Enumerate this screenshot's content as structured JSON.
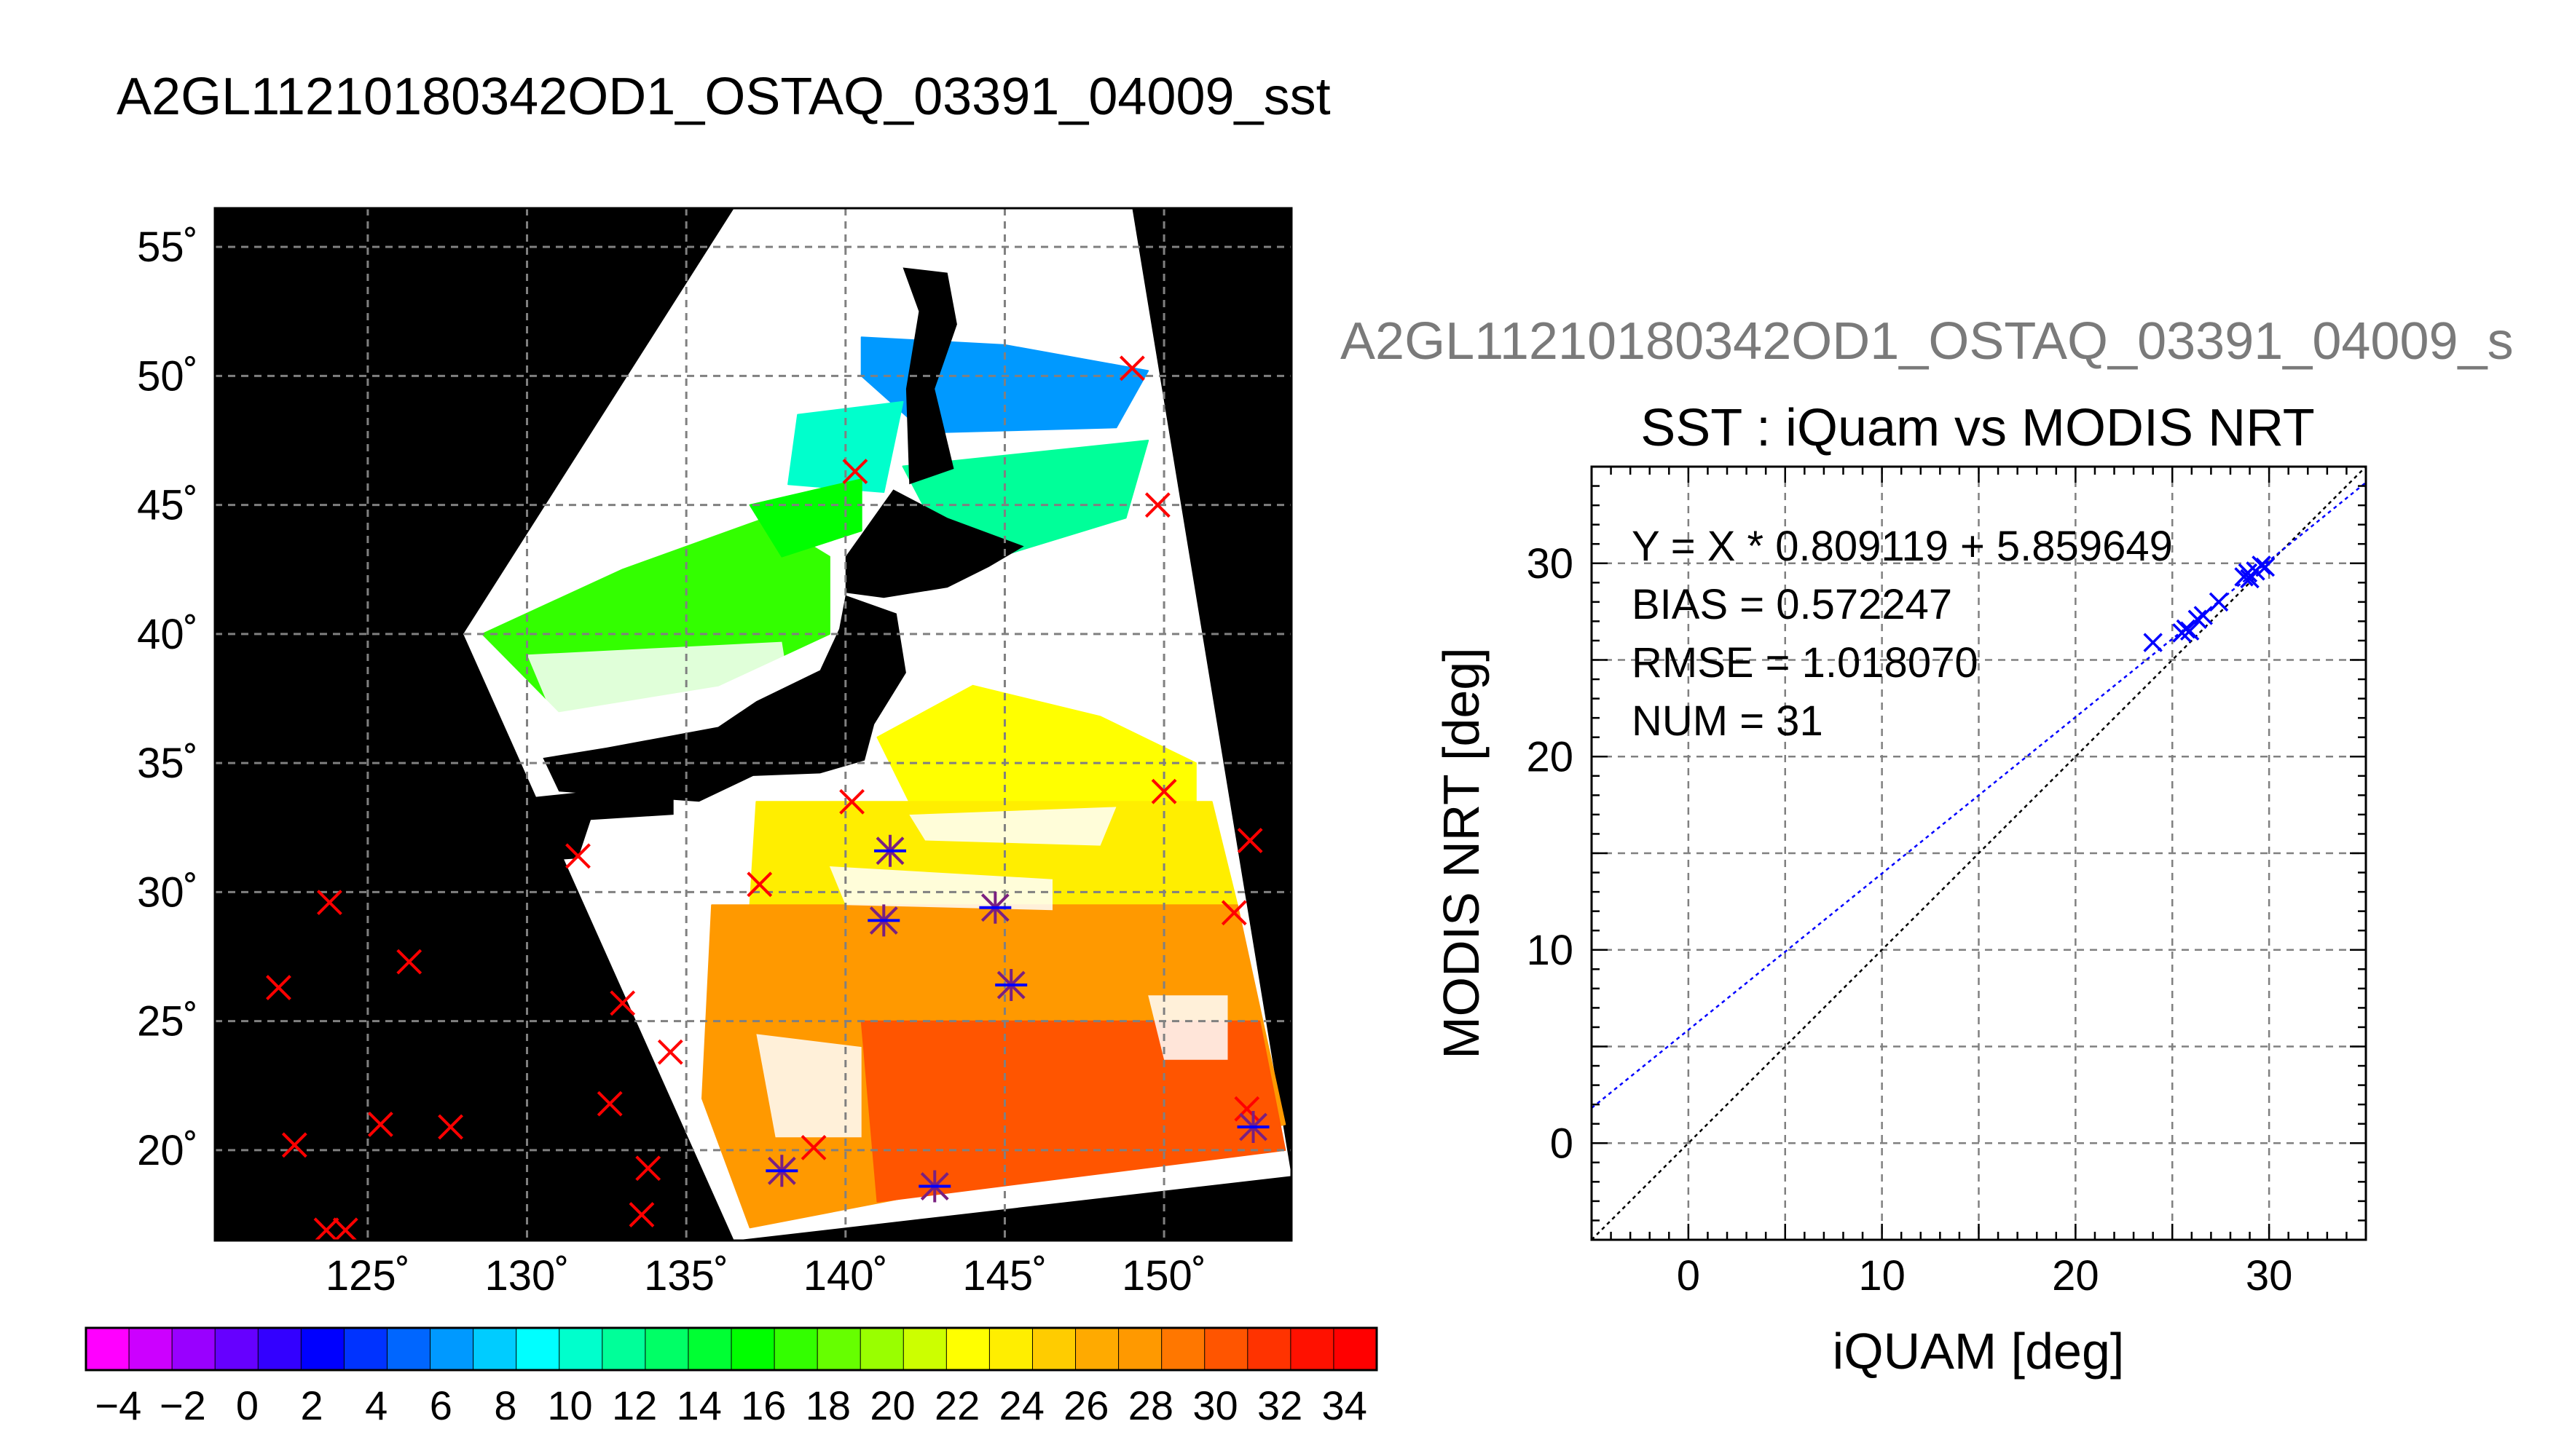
{
  "page": {
    "title": "A2GL11210180342OD1_OSTAQ_03391_04009_sst",
    "scatter_header": "A2GL11210180342OD1_OSTAQ_03391_04009_s"
  },
  "colors": {
    "land": "#000000",
    "cloud": "#ffffff",
    "grid": "#808080",
    "marker_red": "#ff0000",
    "marker_blue": "#0000ff",
    "marker_purple": "#7a2080",
    "fit_line": "#0000ff",
    "identity_line": "#000000",
    "colorbar": [
      "#ff00ff",
      "#cc00ff",
      "#9900ff",
      "#6600ff",
      "#3300ff",
      "#0000ff",
      "#0033ff",
      "#0066ff",
      "#0099ff",
      "#00ccff",
      "#00ffff",
      "#00ffcc",
      "#00ff99",
      "#00ff66",
      "#00ff33",
      "#00ff00",
      "#33ff00",
      "#66ff00",
      "#99ff00",
      "#ccff00",
      "#ffff00",
      "#ffee00",
      "#ffcc00",
      "#ffaa00",
      "#ff9900",
      "#ff7700",
      "#ff5500",
      "#ff3300",
      "#ff1100",
      "#ff0000"
    ]
  },
  "chart_data": [
    {
      "type": "heatmap",
      "name": "sst-map",
      "title": "",
      "xlim": [
        120.2,
        154
      ],
      "ylim": [
        16.5,
        56.5
      ],
      "x_ticks": [
        125,
        130,
        135,
        140,
        145,
        150
      ],
      "x_tick_labels": [
        "125˚",
        "130˚",
        "135˚",
        "140˚",
        "145˚",
        "150˚"
      ],
      "y_ticks": [
        20,
        25,
        30,
        35,
        40,
        45,
        50,
        55
      ],
      "y_tick_labels": [
        "20˚",
        "25˚",
        "30˚",
        "35˚",
        "40˚",
        "45˚",
        "50˚",
        "55˚"
      ],
      "grid": true,
      "swath": [
        [
          136.5,
          56.5
        ],
        [
          149.0,
          56.5
        ],
        [
          154.0,
          19.0
        ],
        [
          136.5,
          16.5
        ],
        [
          128.0,
          40.0
        ]
      ],
      "sst_regions": [
        {
          "value": 6,
          "poly": [
            [
              140.5,
              51.5
            ],
            [
              145,
              51.2
            ],
            [
              149.5,
              50.2
            ],
            [
              148.5,
              48.0
            ],
            [
              142.5,
              47.8
            ],
            [
              140.5,
              50.0
            ]
          ]
        },
        {
          "value": 10,
          "poly": [
            [
              138.5,
              48.5
            ],
            [
              141.8,
              49.0
            ],
            [
              141.2,
              45.5
            ],
            [
              138.2,
              45.8
            ]
          ]
        },
        {
          "value": 12,
          "poly": [
            [
              141.8,
              46.5
            ],
            [
              149.5,
              47.5
            ],
            [
              148.8,
              44.5
            ],
            [
              143.5,
              42.5
            ]
          ]
        },
        {
          "value": 17,
          "poly": [
            [
              128.6,
              40.0
            ],
            [
              133,
              42.5
            ],
            [
              137.5,
              44.5
            ],
            [
              139.5,
              43.0
            ],
            [
              139.5,
              40.0
            ],
            [
              136,
              38.0
            ],
            [
              131,
              37.0
            ]
          ]
        },
        {
          "value": 15,
          "poly": [
            [
              137,
              45.0
            ],
            [
              140.5,
              46.0
            ],
            [
              140.5,
              44.0
            ],
            [
              138,
              43.0
            ]
          ]
        },
        {
          "value": 22,
          "poly": [
            [
              141,
              36.0
            ],
            [
              144,
              38.0
            ],
            [
              148,
              36.8
            ],
            [
              151,
              35.0
            ],
            [
              151,
              33.5
            ],
            [
              142,
              33.5
            ]
          ]
        },
        {
          "value": 24,
          "poly": [
            [
              137.2,
              33.5
            ],
            [
              151.5,
              33.5
            ],
            [
              152.3,
              29.5
            ],
            [
              137.0,
              29.5
            ]
          ]
        },
        {
          "value": 28,
          "poly": [
            [
              135.8,
              29.5
            ],
            [
              152.3,
              29.5
            ],
            [
              153.8,
              21.0
            ],
            [
              137.0,
              17.0
            ],
            [
              135.5,
              22.0
            ]
          ]
        },
        {
          "value": 30,
          "poly": [
            [
              140.5,
              25.0
            ],
            [
              153.0,
              25.0
            ],
            [
              153.8,
              20.0
            ],
            [
              141.0,
              18.0
            ]
          ]
        }
      ],
      "cloud_regions": [
        {
          "poly": [
            [
              130,
              39.2
            ],
            [
              138,
              39.7
            ],
            [
              138.5,
              35.8
            ],
            [
              131.5,
              34.8
            ]
          ]
        },
        {
          "poly": [
            [
              139.5,
              31.0
            ],
            [
              146.5,
              30.5
            ],
            [
              146.5,
              29.3
            ],
            [
              140,
              29.5
            ]
          ]
        },
        {
          "poly": [
            [
              142.0,
              33.0
            ],
            [
              148.5,
              33.3
            ],
            [
              148.0,
              31.8
            ],
            [
              142.5,
              32.0
            ]
          ]
        },
        {
          "poly": [
            [
              137.2,
              24.5
            ],
            [
              140.5,
              24.0
            ],
            [
              140.5,
              20.5
            ],
            [
              137.8,
              20.5
            ]
          ]
        },
        {
          "poly": [
            [
              149.5,
              26.0
            ],
            [
              152.0,
              26.0
            ],
            [
              152.0,
              23.5
            ],
            [
              150.0,
              23.5
            ]
          ]
        }
      ],
      "land_regions": [
        {
          "name": "sakhalin",
          "poly": [
            [
              141.8,
              54.2
            ],
            [
              143.2,
              54.0
            ],
            [
              143.5,
              52.0
            ],
            [
              142.8,
              49.5
            ],
            [
              143.4,
              46.4
            ],
            [
              142.0,
              45.8
            ],
            [
              141.9,
              49.5
            ],
            [
              142.3,
              52.5
            ]
          ]
        },
        {
          "name": "hokkaido",
          "poly": [
            [
              140.0,
              43.0
            ],
            [
              141.5,
              45.6
            ],
            [
              143.2,
              44.5
            ],
            [
              145.6,
              43.4
            ],
            [
              144.5,
              42.6
            ],
            [
              143.2,
              41.8
            ],
            [
              141.2,
              41.4
            ],
            [
              140.0,
              41.6
            ]
          ]
        },
        {
          "name": "honshu",
          "poly": [
            [
              140.0,
              41.5
            ],
            [
              141.6,
              40.8
            ],
            [
              141.9,
              38.5
            ],
            [
              140.9,
              36.5
            ],
            [
              140.6,
              35.1
            ],
            [
              139.2,
              34.6
            ],
            [
              137.1,
              34.5
            ],
            [
              135.4,
              33.5
            ],
            [
              131.0,
              33.9
            ],
            [
              130.5,
              35.2
            ],
            [
              132.5,
              35.6
            ],
            [
              136.0,
              36.4
            ],
            [
              137.2,
              37.4
            ],
            [
              139.2,
              38.6
            ],
            [
              139.8,
              40.2
            ]
          ]
        },
        {
          "name": "kyushu-shikoku",
          "poly": [
            [
              129.6,
              33.6
            ],
            [
              131.9,
              33.9
            ],
            [
              134.6,
              34.2
            ],
            [
              134.6,
              33.0
            ],
            [
              132.0,
              32.8
            ],
            [
              131.6,
              31.3
            ],
            [
              130.2,
              31.2
            ]
          ]
        }
      ],
      "markers": [
        {
          "lon": 149.0,
          "lat": 50.3,
          "style": "red-x"
        },
        {
          "lon": 140.3,
          "lat": 46.3,
          "style": "red-x"
        },
        {
          "lon": 149.8,
          "lat": 45.0,
          "style": "red-x"
        },
        {
          "lon": 140.2,
          "lat": 33.5,
          "style": "red-x"
        },
        {
          "lon": 150.0,
          "lat": 33.9,
          "style": "red-x"
        },
        {
          "lon": 152.7,
          "lat": 32.0,
          "style": "red-x"
        },
        {
          "lon": 131.6,
          "lat": 31.4,
          "style": "red-x"
        },
        {
          "lon": 137.3,
          "lat": 30.3,
          "style": "red-x"
        },
        {
          "lon": 152.2,
          "lat": 29.2,
          "style": "red-x"
        },
        {
          "lon": 123.8,
          "lat": 29.6,
          "style": "red-x"
        },
        {
          "lon": 126.3,
          "lat": 27.3,
          "style": "red-x"
        },
        {
          "lon": 122.2,
          "lat": 26.3,
          "style": "red-x"
        },
        {
          "lon": 133.0,
          "lat": 25.7,
          "style": "red-x"
        },
        {
          "lon": 134.5,
          "lat": 23.8,
          "style": "red-x"
        },
        {
          "lon": 132.6,
          "lat": 21.8,
          "style": "red-x"
        },
        {
          "lon": 125.4,
          "lat": 21.0,
          "style": "red-x"
        },
        {
          "lon": 127.6,
          "lat": 20.9,
          "style": "red-x"
        },
        {
          "lon": 122.7,
          "lat": 20.2,
          "style": "red-x"
        },
        {
          "lon": 139.0,
          "lat": 20.1,
          "style": "red-x"
        },
        {
          "lon": 133.8,
          "lat": 19.3,
          "style": "red-x"
        },
        {
          "lon": 133.6,
          "lat": 17.5,
          "style": "red-x"
        },
        {
          "lon": 123.7,
          "lat": 16.9,
          "style": "red-x"
        },
        {
          "lon": 124.3,
          "lat": 16.9,
          "style": "red-x"
        },
        {
          "lon": 152.6,
          "lat": 21.6,
          "style": "red-x"
        },
        {
          "lon": 141.4,
          "lat": 31.6,
          "style": "matched"
        },
        {
          "lon": 141.2,
          "lat": 28.9,
          "style": "matched"
        },
        {
          "lon": 144.7,
          "lat": 29.4,
          "style": "matched"
        },
        {
          "lon": 145.2,
          "lat": 26.4,
          "style": "matched"
        },
        {
          "lon": 138.0,
          "lat": 19.2,
          "style": "matched"
        },
        {
          "lon": 142.8,
          "lat": 18.6,
          "style": "matched"
        },
        {
          "lon": 152.8,
          "lat": 20.9,
          "style": "matched"
        }
      ]
    },
    {
      "type": "colorbar",
      "name": "sst-colorbar",
      "range": [
        -5,
        35
      ],
      "tick_values": [
        -4,
        -2,
        0,
        2,
        4,
        6,
        8,
        10,
        12,
        14,
        16,
        18,
        20,
        22,
        24,
        26,
        28,
        30,
        32,
        34
      ],
      "tick_labels": [
        "−4",
        "−2",
        "0",
        "2",
        "4",
        "6",
        "8",
        "10",
        "12",
        "14",
        "16",
        "18",
        "20",
        "22",
        "24",
        "26",
        "28",
        "30",
        "32",
        "34"
      ]
    },
    {
      "type": "scatter",
      "name": "sst-scatter",
      "title": "SST : iQuam vs MODIS NRT",
      "xlabel": "iQUAM [deg]",
      "ylabel": "MODIS NRT [deg]",
      "xlim": [
        -5,
        35
      ],
      "ylim": [
        -5,
        35
      ],
      "x_ticks": [
        0,
        10,
        20,
        30
      ],
      "y_ticks": [
        0,
        10,
        20,
        30
      ],
      "grid": true,
      "stats": [
        "Y = X * 0.809119 + 5.859649",
        "BIAS = 0.572247",
        "RMSE = 1.018070",
        "NUM = 31"
      ],
      "fit": {
        "slope": 0.809119,
        "intercept": 5.859649
      },
      "points": [
        {
          "x": 24.0,
          "y": 25.9
        },
        {
          "x": 25.5,
          "y": 26.4
        },
        {
          "x": 25.7,
          "y": 26.6
        },
        {
          "x": 25.9,
          "y": 26.5
        },
        {
          "x": 26.3,
          "y": 27.1
        },
        {
          "x": 26.6,
          "y": 27.3
        },
        {
          "x": 27.4,
          "y": 28.0
        },
        {
          "x": 28.7,
          "y": 29.3
        },
        {
          "x": 28.9,
          "y": 29.5
        },
        {
          "x": 29.0,
          "y": 29.2
        },
        {
          "x": 29.3,
          "y": 29.6
        },
        {
          "x": 29.6,
          "y": 29.9
        },
        {
          "x": 29.8,
          "y": 29.8
        }
      ]
    }
  ]
}
